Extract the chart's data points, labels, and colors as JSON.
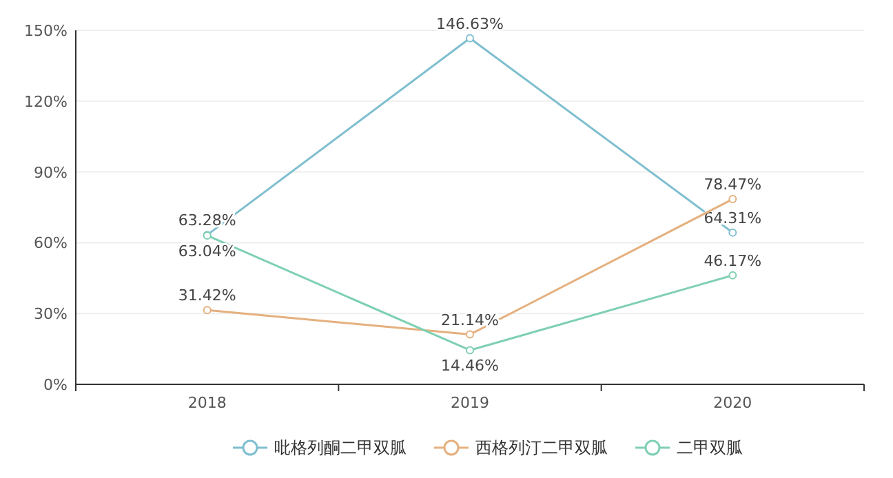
{
  "chart_data": {
    "type": "line",
    "categories": [
      "2018",
      "2019",
      "2020"
    ],
    "ylim": [
      0,
      150
    ],
    "yticks": [
      {
        "value": 0,
        "label": "0%"
      },
      {
        "value": 30,
        "label": "30%"
      },
      {
        "value": 60,
        "label": "60%"
      },
      {
        "value": 90,
        "label": "90%"
      },
      {
        "value": 120,
        "label": "120%"
      },
      {
        "value": 150,
        "label": "150%"
      }
    ],
    "grid": "y",
    "legend": "bottom",
    "marker": "circle",
    "line_style": "solid",
    "series": [
      {
        "name": "吡格列酮二甲双胍",
        "color": "#7fbfcf",
        "values": [
          63.28,
          146.63,
          64.31
        ],
        "value_labels": [
          "63.28%",
          "146.63%",
          "64.31%"
        ]
      },
      {
        "name": "西格列汀二甲双胍",
        "color": "#e5b07f",
        "values": [
          31.42,
          21.14,
          78.47
        ],
        "value_labels": [
          "31.42%",
          "21.14%",
          "78.47%"
        ]
      },
      {
        "name": "二甲双胍",
        "color": "#7fd0b2",
        "values": [
          63.04,
          14.46,
          46.17
        ],
        "value_labels": [
          "63.04%",
          "14.46%",
          "46.17%"
        ]
      }
    ]
  }
}
